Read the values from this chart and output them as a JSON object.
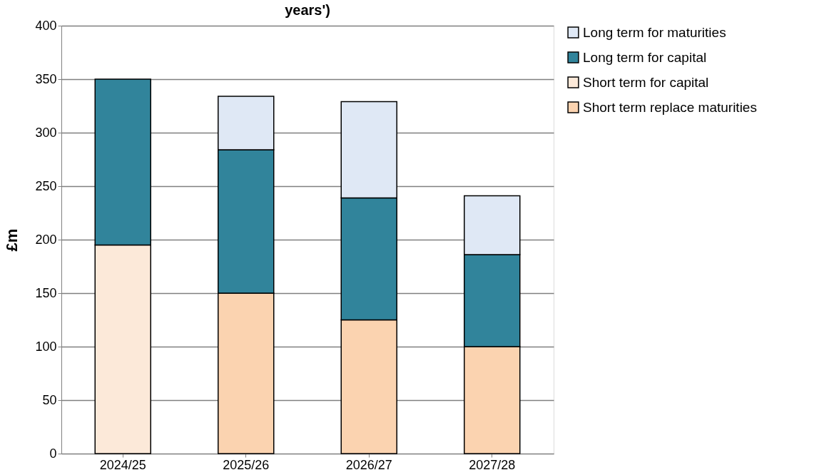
{
  "chart_data": {
    "type": "bar",
    "title": "years')",
    "ylabel": "£m",
    "stacked": true,
    "categories": [
      "2024/25",
      "2025/26",
      "2026/27",
      "2027/28"
    ],
    "series": [
      {
        "name": "Short term replace maturities",
        "color": "#fbd3b0",
        "values": [
          null,
          150,
          125,
          100
        ]
      },
      {
        "name": "Short term for capital",
        "color": "#fce9d9",
        "values": [
          195,
          null,
          null,
          null
        ]
      },
      {
        "name": "Long term for capital",
        "color": "#31849b",
        "values": [
          155,
          134,
          114,
          86
        ]
      },
      {
        "name": "Long term for maturities",
        "color": "#dfe8f5",
        "values": [
          null,
          50,
          90,
          55
        ]
      }
    ],
    "ylim": [
      0,
      400
    ],
    "yticks": [
      0,
      50,
      100,
      150,
      200,
      250,
      300,
      350,
      400
    ],
    "grid": "y",
    "legend": "right"
  }
}
